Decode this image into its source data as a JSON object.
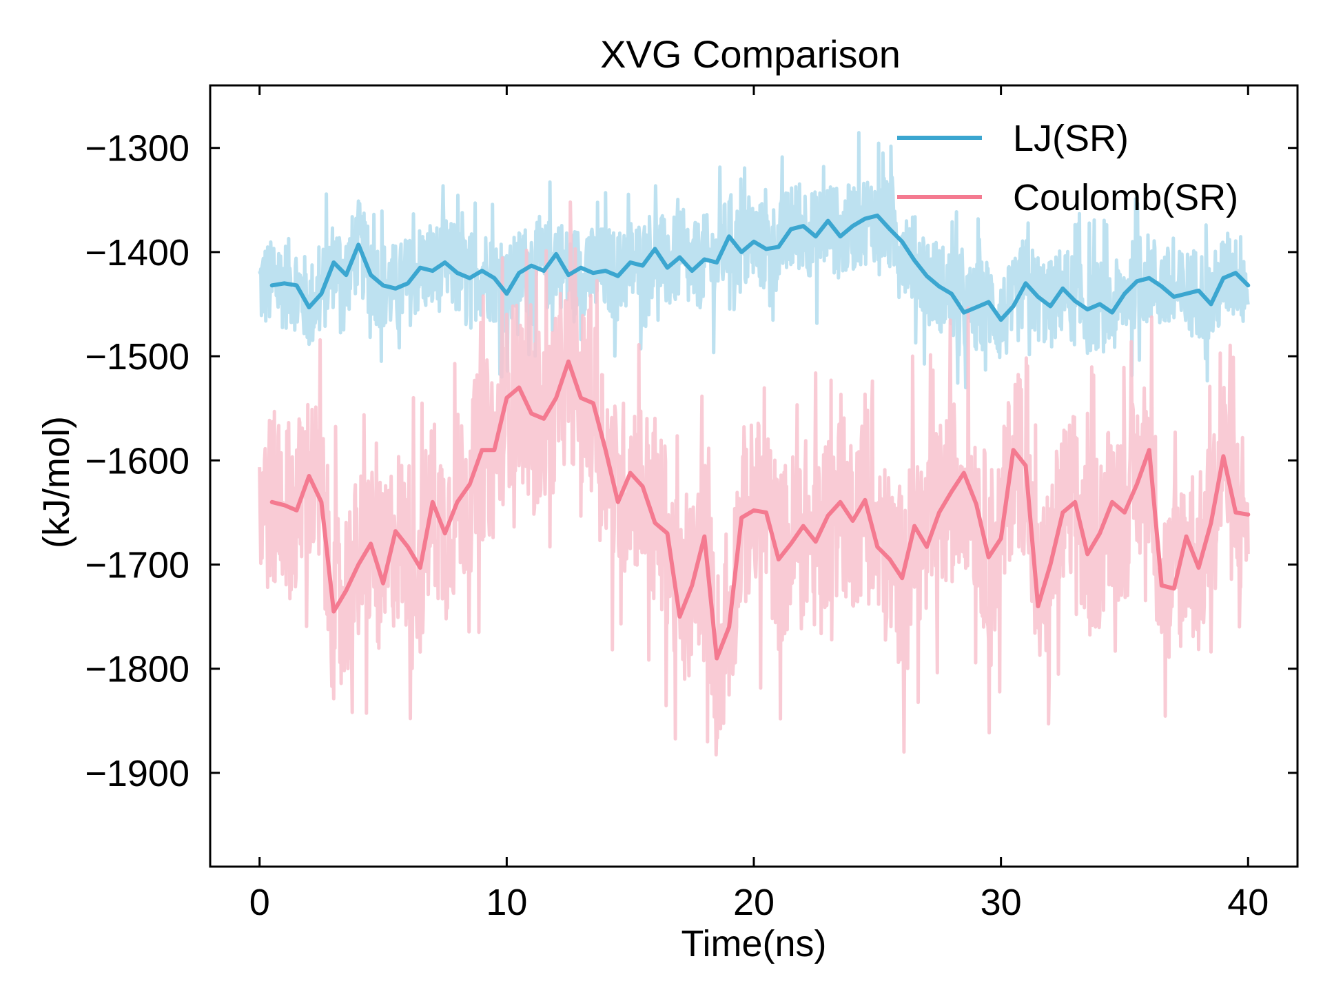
{
  "chart_data": {
    "type": "line",
    "title": "XVG Comparison",
    "xlabel": "Time(ns)",
    "ylabel": "(kJ/mol)",
    "xlim": [
      -2,
      42
    ],
    "ylim": [
      -1990,
      -1240
    ],
    "xticks": [
      0,
      10,
      20,
      30,
      40
    ],
    "yticks": [
      -1300,
      -1400,
      -1500,
      -1600,
      -1700,
      -1800,
      -1900
    ],
    "xtick_labels": [
      "0",
      "10",
      "20",
      "30",
      "40"
    ],
    "ytick_labels": [
      "−1300",
      "−1400",
      "−1500",
      "−1600",
      "−1700",
      "−1800",
      "−1900"
    ],
    "grid": false,
    "legend_position": "top-right",
    "series": [
      {
        "name": "LJ(SR)",
        "color": "#3ba6d0",
        "raw_color": "#b2dced",
        "raw_band": 55,
        "x": [
          0.5,
          1,
          1.5,
          2,
          2.5,
          3,
          3.5,
          4,
          4.5,
          5,
          5.5,
          6,
          6.5,
          7,
          7.5,
          8,
          8.5,
          9,
          9.5,
          10,
          10.5,
          11,
          11.5,
          12,
          12.5,
          13,
          13.5,
          14,
          14.5,
          15,
          15.5,
          16,
          16.5,
          17,
          17.5,
          18,
          18.5,
          19,
          19.5,
          20,
          20.5,
          21,
          21.5,
          22,
          22.5,
          23,
          23.5,
          24,
          24.5,
          25,
          25.5,
          26,
          26.5,
          27,
          27.5,
          28,
          28.5,
          29,
          29.5,
          30,
          30.5,
          31,
          31.5,
          32,
          32.5,
          33,
          33.5,
          34,
          34.5,
          35,
          35.5,
          36,
          36.5,
          37,
          37.5,
          38,
          38.5,
          39,
          39.5,
          40
        ],
        "y": [
          -1432,
          -1430,
          -1432,
          -1453,
          -1440,
          -1410,
          -1422,
          -1393,
          -1422,
          -1432,
          -1435,
          -1430,
          -1415,
          -1418,
          -1410,
          -1420,
          -1425,
          -1418,
          -1425,
          -1440,
          -1420,
          -1413,
          -1418,
          -1402,
          -1422,
          -1415,
          -1420,
          -1418,
          -1423,
          -1410,
          -1413,
          -1397,
          -1415,
          -1405,
          -1418,
          -1407,
          -1410,
          -1385,
          -1400,
          -1390,
          -1397,
          -1395,
          -1378,
          -1375,
          -1385,
          -1370,
          -1385,
          -1375,
          -1368,
          -1365,
          -1378,
          -1390,
          -1408,
          -1423,
          -1433,
          -1440,
          -1458,
          -1453,
          -1448,
          -1465,
          -1452,
          -1430,
          -1443,
          -1452,
          -1435,
          -1447,
          -1455,
          -1450,
          -1458,
          -1440,
          -1428,
          -1425,
          -1433,
          -1443,
          -1440,
          -1437,
          -1450,
          -1425,
          -1420,
          -1432
        ]
      },
      {
        "name": "Coulomb(SR)",
        "color": "#f47a90",
        "raw_color": "#f8c2ce",
        "raw_band": 110,
        "x": [
          0.5,
          1,
          1.5,
          2,
          2.5,
          3,
          3.5,
          4,
          4.5,
          5,
          5.5,
          6,
          6.5,
          7,
          7.5,
          8,
          8.5,
          9,
          9.5,
          10,
          10.5,
          11,
          11.5,
          12,
          12.5,
          13,
          13.5,
          14,
          14.5,
          15,
          15.5,
          16,
          16.5,
          17,
          17.5,
          18,
          18.5,
          19,
          19.5,
          20,
          20.5,
          21,
          21.5,
          22,
          22.5,
          23,
          23.5,
          24,
          24.5,
          25,
          25.5,
          26,
          26.5,
          27,
          27.5,
          28,
          28.5,
          29,
          29.5,
          30,
          30.5,
          31,
          31.5,
          32,
          32.5,
          33,
          33.5,
          34,
          34.5,
          35,
          35.5,
          36,
          36.5,
          37,
          37.5,
          38,
          38.5,
          39,
          39.5,
          40
        ],
        "y": [
          -1640,
          -1643,
          -1648,
          -1615,
          -1640,
          -1745,
          -1725,
          -1700,
          -1680,
          -1718,
          -1668,
          -1683,
          -1703,
          -1640,
          -1670,
          -1640,
          -1623,
          -1590,
          -1590,
          -1540,
          -1530,
          -1555,
          -1560,
          -1540,
          -1505,
          -1540,
          -1545,
          -1590,
          -1640,
          -1612,
          -1625,
          -1660,
          -1670,
          -1750,
          -1720,
          -1673,
          -1790,
          -1760,
          -1655,
          -1648,
          -1650,
          -1695,
          -1680,
          -1663,
          -1678,
          -1653,
          -1640,
          -1658,
          -1638,
          -1683,
          -1695,
          -1713,
          -1663,
          -1683,
          -1650,
          -1630,
          -1612,
          -1642,
          -1693,
          -1675,
          -1590,
          -1605,
          -1740,
          -1700,
          -1650,
          -1640,
          -1690,
          -1670,
          -1640,
          -1650,
          -1623,
          -1590,
          -1720,
          -1723,
          -1673,
          -1703,
          -1660,
          -1596,
          -1650,
          -1652
        ]
      }
    ]
  }
}
